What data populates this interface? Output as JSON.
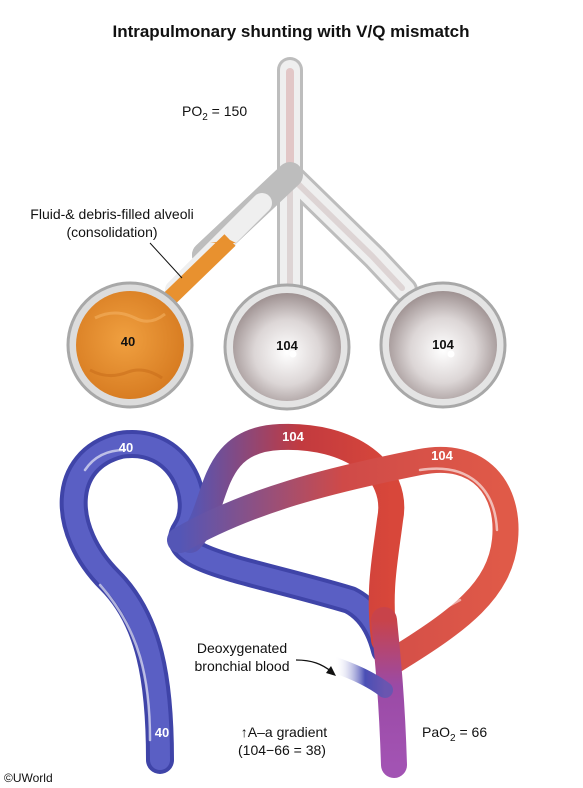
{
  "title": "Intrapulmonary shunting with V/Q mismatch",
  "po2_label": "PO",
  "po2_sub": "2",
  "po2_value": " = 150",
  "consolidation_label_line1": "Fluid-& debris-filled alveoli",
  "consolidation_label_line2": "(consolidation)",
  "alveoli": [
    {
      "value": "40",
      "state": "consolidated"
    },
    {
      "value": "104",
      "state": "ventilated"
    },
    {
      "value": "104",
      "state": "ventilated"
    }
  ],
  "vessel_labels": {
    "left_capillary": "40",
    "middle_capillary": "104",
    "right_capillary": "104",
    "venous_inflow": "40"
  },
  "bronchial_label_line1": "Deoxygenated",
  "bronchial_label_line2": "bronchial blood",
  "gradient_arrow": "↑",
  "gradient_label_line1": "A–a gradient",
  "gradient_label_line2": "(104−66 = 38)",
  "pao2_label": "PaO",
  "pao2_sub": "2",
  "pao2_value": " = 66",
  "copyright": "©UWorld",
  "colors": {
    "deoxygenated": "#4a4fb5",
    "oxygenated": "#d8473a",
    "mixed": "#9a4aa6",
    "consolidation": "#e8912f",
    "airway": "#e6e6e6"
  }
}
